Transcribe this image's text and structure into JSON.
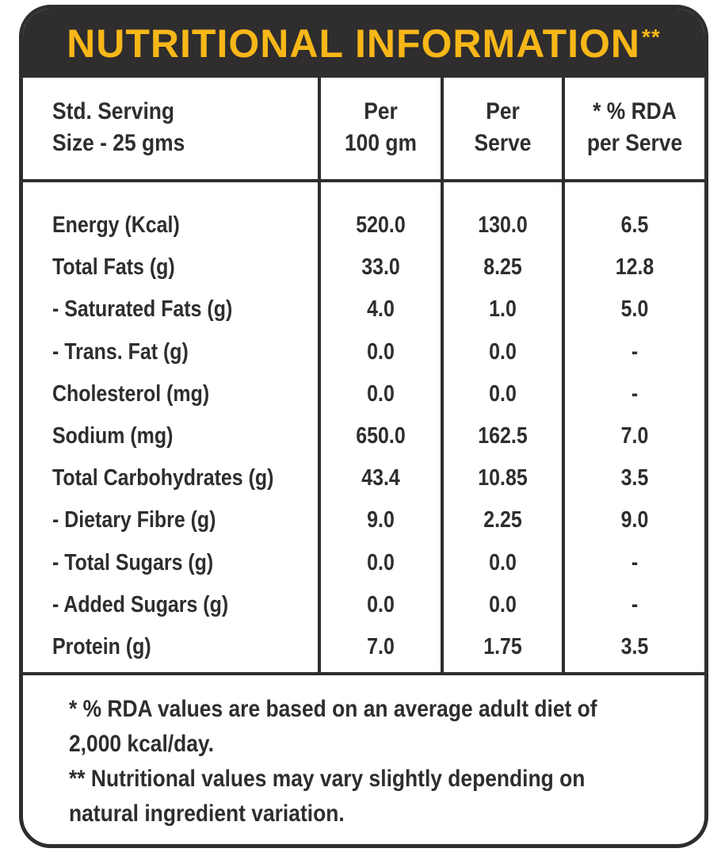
{
  "title": "NUTRITIONAL INFORMATION",
  "title_mark": "**",
  "colors": {
    "dark": "#2f2d2e",
    "accent": "#f7b718",
    "background": "#ffffff"
  },
  "header": {
    "col1_line1": "Std. Serving",
    "col1_line2": "Size - 25 gms",
    "col2_line1": "Per",
    "col2_line2": "100 gm",
    "col3_line1": "Per",
    "col3_line2": "Serve",
    "col4_line1": "* % RDA",
    "col4_line2": "per Serve"
  },
  "rows": [
    {
      "name": "Energy (Kcal)",
      "per100": "520.0",
      "perServe": "130.0",
      "rda": "6.5"
    },
    {
      "name": "Total Fats (g)",
      "per100": "33.0",
      "perServe": "8.25",
      "rda": "12.8"
    },
    {
      "name": "- Saturated Fats (g)",
      "per100": "4.0",
      "perServe": "1.0",
      "rda": "5.0"
    },
    {
      "name": "- Trans. Fat (g)",
      "per100": "0.0",
      "perServe": "0.0",
      "rda": "-"
    },
    {
      "name": "Cholesterol (mg)",
      "per100": "0.0",
      "perServe": "0.0",
      "rda": "-"
    },
    {
      "name": "Sodium (mg)",
      "per100": "650.0",
      "perServe": "162.5",
      "rda": "7.0"
    },
    {
      "name": "Total Carbohydrates (g)",
      "per100": "43.4",
      "perServe": "10.85",
      "rda": "3.5"
    },
    {
      "name": "- Dietary Fibre (g)",
      "per100": "9.0",
      "perServe": "2.25",
      "rda": "9.0"
    },
    {
      "name": "- Total Sugars (g)",
      "per100": "0.0",
      "perServe": "0.0",
      "rda": "-"
    },
    {
      "name": "- Added Sugars (g)",
      "per100": "0.0",
      "perServe": "0.0",
      "rda": "-"
    },
    {
      "name": "Protein (g)",
      "per100": "7.0",
      "perServe": "1.75",
      "rda": "3.5"
    }
  ],
  "footer": {
    "note1_line1": "* % RDA values are based on an average adult diet of",
    "note1_line2": "2,000 kcal/day.",
    "note2_line1": "** Nutritional values may vary slightly depending on",
    "note2_line2": "natural ingredient variation."
  }
}
